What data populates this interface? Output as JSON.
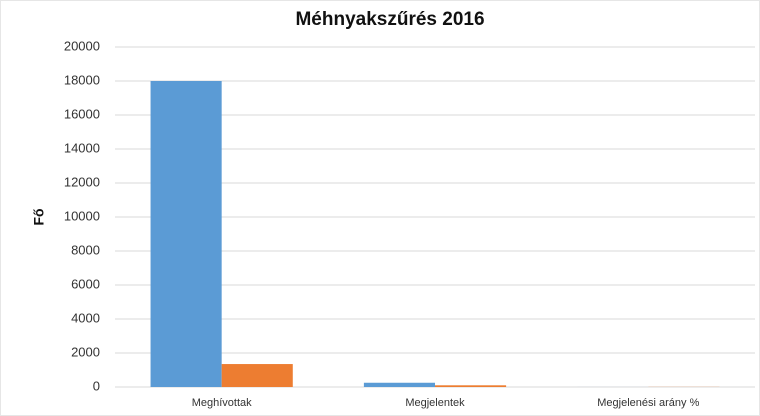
{
  "chart_data": {
    "type": "bar",
    "title": "Méhnyakszűrés 2016",
    "y_label": "Fő",
    "categories": [
      "Meghívottak",
      "Megjelentek",
      "Megjelenési arány %"
    ],
    "series": [
      {
        "color": "#5b9bd5",
        "values": [
          18000,
          250,
          1.4
        ]
      },
      {
        "color": "#ed7d31",
        "values": [
          1350,
          100,
          7.4
        ]
      }
    ],
    "ylim": [
      0,
      20000
    ],
    "yticks": [
      0,
      2000,
      4000,
      6000,
      8000,
      10000,
      12000,
      14000,
      16000,
      18000,
      20000
    ],
    "grid": true
  }
}
